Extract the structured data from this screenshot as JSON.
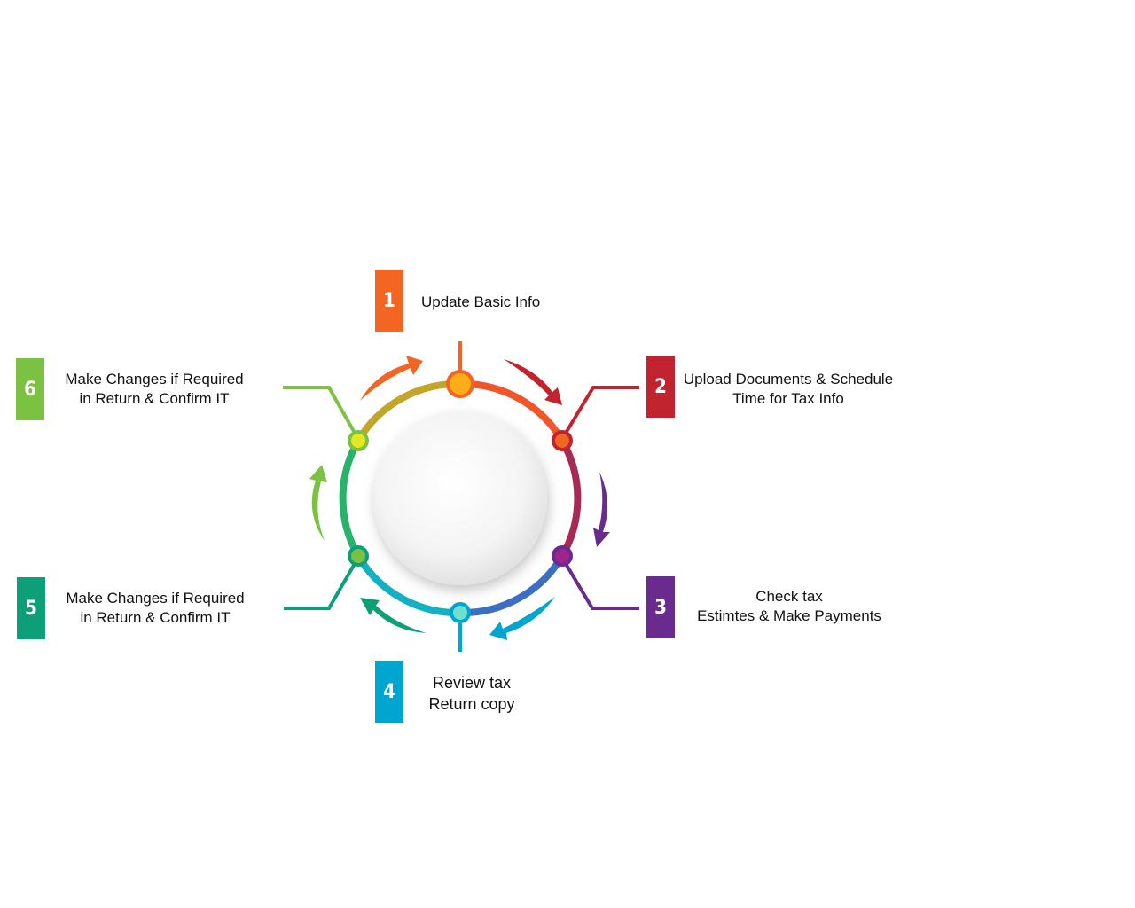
{
  "steps": [
    {
      "num": "1",
      "color": "#f26522",
      "lines": [
        "Update Basic Info"
      ]
    },
    {
      "num": "2",
      "color": "#c1232f",
      "lines": [
        "Upload Documents & Schedule",
        "Time for Tax Info"
      ]
    },
    {
      "num": "3",
      "color": "#6a2b8f",
      "lines": [
        "Check tax",
        "Estimtes & Make Payments"
      ]
    },
    {
      "num": "4",
      "color": "#00a6cf",
      "lines": [
        "Review tax",
        "Return copy"
      ]
    },
    {
      "num": "5",
      "color": "#0d9f77",
      "lines": [
        "Make Changes if Required",
        "in Return & Confirm IT"
      ]
    },
    {
      "num": "6",
      "color": "#7cc242",
      "lines": [
        "Make Changes if Required",
        "in Return & Confirm IT"
      ]
    }
  ]
}
